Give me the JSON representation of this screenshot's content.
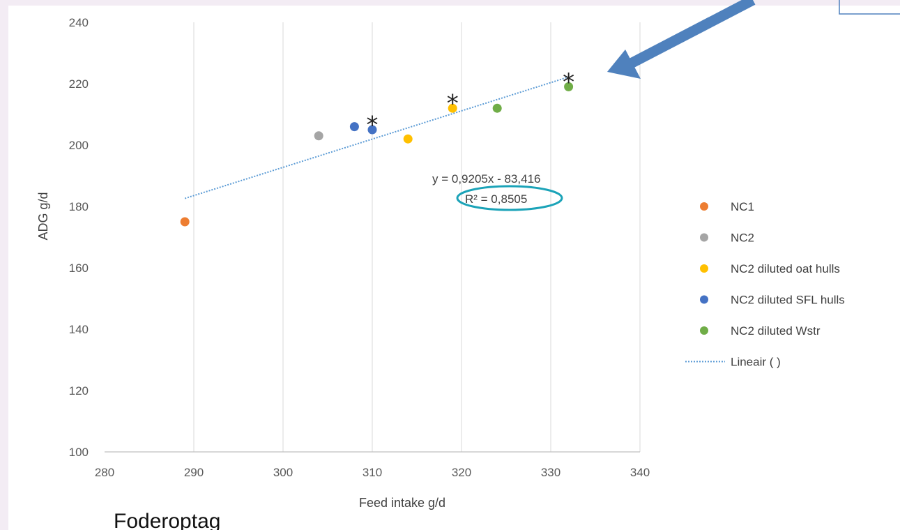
{
  "chart_data": {
    "type": "scatter",
    "xlabel": "Feed intake g/d",
    "ylabel": "ADG g/d",
    "xlim": [
      280,
      340
    ],
    "ylim": [
      100,
      240
    ],
    "xticks": [
      280,
      290,
      300,
      310,
      320,
      330,
      340
    ],
    "yticks": [
      100,
      120,
      140,
      160,
      180,
      200,
      220,
      240
    ],
    "grid": "vertical",
    "legend_position": "right",
    "series": [
      {
        "name": "NC1",
        "color": "#ed7d31",
        "points": [
          {
            "x": 289,
            "y": 175
          }
        ]
      },
      {
        "name": "NC2",
        "color": "#a5a5a5",
        "points": [
          {
            "x": 304,
            "y": 203
          }
        ]
      },
      {
        "name": "NC2 diluted oat hulls",
        "color": "#ffc000",
        "points": [
          {
            "x": 314,
            "y": 202
          },
          {
            "x": 319,
            "y": 212
          }
        ]
      },
      {
        "name": "NC2 diluted SFL hulls",
        "color": "#4472c4",
        "points": [
          {
            "x": 308,
            "y": 206
          },
          {
            "x": 310,
            "y": 205
          }
        ]
      },
      {
        "name": "NC2 diluted Wstr",
        "color": "#70ad47",
        "points": [
          {
            "x": 324,
            "y": 212
          },
          {
            "x": 332,
            "y": 219
          }
        ]
      }
    ],
    "trendline": {
      "name": "Lineair ( )",
      "color": "#5b9bd5",
      "slope": 0.9205,
      "intercept": -83.416,
      "x_range": [
        289,
        332
      ],
      "equation": "y = 0,9205x - 83,416",
      "r2": "R² = 0,8505"
    },
    "markers": [
      {
        "text": "*",
        "x": 310,
        "y": 209
      },
      {
        "text": "*",
        "x": 319,
        "y": 216
      },
      {
        "text": "*",
        "x": 332,
        "y": 223
      }
    ],
    "highlight_color": "#1ba3b8",
    "arrow_color": "#4f81bd"
  },
  "caption": "Foderoptag"
}
